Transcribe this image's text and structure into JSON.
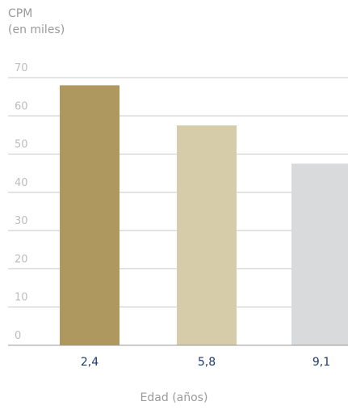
{
  "chart_data": {
    "type": "bar",
    "categories": [
      "2,4",
      "5,8",
      "9,1"
    ],
    "values": [
      68,
      57.5,
      47.5
    ],
    "colors": [
      "#af9860",
      "#d7ccaa",
      "#d9dadb"
    ],
    "ylabel_line1": "CPM",
    "ylabel_line2": "(en miles)",
    "xlabel": "Edad (años)",
    "ylim": [
      0,
      70
    ],
    "yticks": [
      0,
      10,
      20,
      30,
      40,
      50,
      60,
      70
    ],
    "grid": true,
    "tick_color": "#bdbdbd",
    "category_label_color": "#1d3a6b"
  }
}
